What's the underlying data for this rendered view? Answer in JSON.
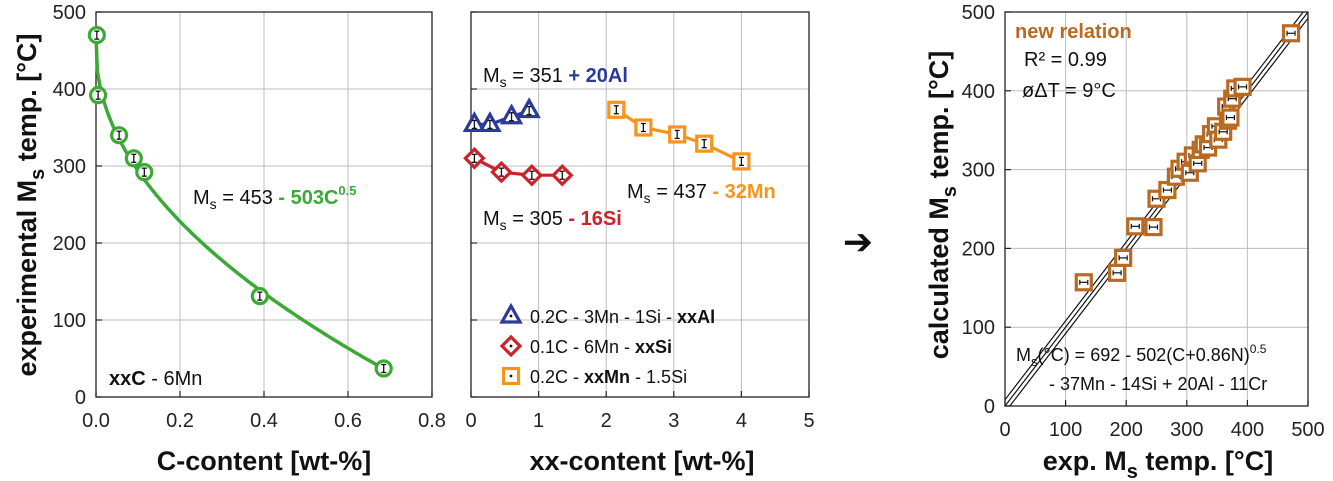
{
  "chart_data": [
    {
      "type": "line",
      "xlabel": "C-content [wt-%]",
      "ylabel": "experimental M_s temp. [°C]",
      "xlim": [
        0,
        0.8
      ],
      "ylim": [
        0,
        500
      ],
      "x_ticks": [
        "0.0",
        "0.2",
        "0.4",
        "0.6",
        "0.8"
      ],
      "y_ticks": [
        "0",
        "100",
        "200",
        "300",
        "400",
        "500"
      ],
      "grid": true,
      "series": [
        {
          "color": "#3aaa35",
          "marker": "circle",
          "points": [
            [
              0.002,
              470
            ],
            [
              0.005,
              392
            ],
            [
              0.055,
              340
            ],
            [
              0.09,
              310
            ],
            [
              0.115,
              292
            ],
            [
              0.39,
              131
            ],
            [
              0.685,
              37
            ]
          ]
        }
      ],
      "fit": {
        "formula": "453 - 503*x^0.5",
        "color": "#3aaa35"
      },
      "annotations": {
        "equation": {
          "lhs": "M",
          "sub": "s",
          "rest": " = 453 ",
          "colored": "- 503C",
          "sup": "0.5",
          "color": "#3aaa35"
        },
        "label": {
          "bold": "xxC",
          "rest": " - 6Mn"
        }
      }
    },
    {
      "type": "line",
      "xlabel": "xx-content [wt-%]",
      "xlim": [
        0,
        5
      ],
      "ylim": [
        0,
        500
      ],
      "x_ticks": [
        "0",
        "1",
        "2",
        "3",
        "4",
        "5"
      ],
      "grid": true,
      "series": [
        {
          "name": "0.2C - 3Mn - 1Si - xxAl",
          "color": "#2b3a9b",
          "marker": "triangle",
          "points": [
            [
              0.05,
              354
            ],
            [
              0.28,
              354
            ],
            [
              0.6,
              364
            ],
            [
              0.86,
              372
            ]
          ]
        },
        {
          "name": "0.1C - 6Mn - xxSi",
          "color": "#cc2229",
          "marker": "diamond",
          "points": [
            [
              0.05,
              310
            ],
            [
              0.45,
              292
            ],
            [
              0.9,
              288
            ],
            [
              1.35,
              288
            ]
          ]
        },
        {
          "name": "0.2C - xxMn - 1.5Si",
          "color": "#f7941d",
          "marker": "square",
          "points": [
            [
              2.15,
              373
            ],
            [
              2.55,
              350
            ],
            [
              3.05,
              341
            ],
            [
              3.45,
              329
            ],
            [
              4.0,
              306
            ]
          ]
        }
      ],
      "annotations": {
        "eq_al": {
          "lhs": "M",
          "sub": "s",
          "rest": " = 351 ",
          "colored": "+ 20Al",
          "color": "#2b3a9b"
        },
        "eq_si": {
          "lhs": "M",
          "sub": "s",
          "rest": " = 305 ",
          "colored": "- 16Si",
          "color": "#cc2229"
        },
        "eq_mn": {
          "lhs": "M",
          "sub": "s",
          "rest": " = 437 ",
          "colored": "- 32Mn",
          "color": "#f7941d"
        },
        "legend_bold": [
          "xxAl",
          "xxSi",
          "xxMn"
        ],
        "legend_placement": "bottom-left"
      }
    },
    {
      "type": "scatter",
      "xlabel": "exp. M_s temp. [°C]",
      "ylabel": "calculated M_s temp. [°C]",
      "xlim": [
        0,
        500
      ],
      "ylim": [
        0,
        500
      ],
      "x_ticks": [
        "0",
        "100",
        "200",
        "300",
        "400",
        "500"
      ],
      "y_ticks": [
        "0",
        "100",
        "200",
        "300",
        "400",
        "500"
      ],
      "grid": true,
      "series": [
        {
          "color": "#b86a22",
          "marker": "square",
          "points": [
            [
              130,
              157
            ],
            [
              185,
              169
            ],
            [
              195,
              188
            ],
            [
              215,
              228
            ],
            [
              245,
              227
            ],
            [
              250,
              263
            ],
            [
              268,
              274
            ],
            [
              282,
              291
            ],
            [
              288,
              301
            ],
            [
              298,
              310
            ],
            [
              305,
              296
            ],
            [
              310,
              318
            ],
            [
              318,
              308
            ],
            [
              323,
              325
            ],
            [
              328,
              332
            ],
            [
              335,
              328
            ],
            [
              340,
              345
            ],
            [
              348,
              355
            ],
            [
              352,
              338
            ],
            [
              360,
              348
            ],
            [
              365,
              380
            ],
            [
              368,
              362
            ],
            [
              372,
              366
            ],
            [
              375,
              390
            ],
            [
              380,
              403
            ],
            [
              392,
              405
            ],
            [
              472,
              473
            ]
          ]
        }
      ],
      "reference_lines": [
        0,
        -8,
        8
      ],
      "annotations": {
        "title": "new relation",
        "title_color": "#b86a22",
        "r2": "R² = 0.99",
        "dT": "øΔT = 9°C",
        "formula_line1": {
          "lhs": "M",
          "sub": "s",
          "rest": "(°C) = 692 - 502(C+0.86N)",
          "sup": "0.5"
        },
        "formula_line2": "- 37Mn - 14Si + 20Al - 11Cr"
      }
    }
  ],
  "arrow": "➔"
}
